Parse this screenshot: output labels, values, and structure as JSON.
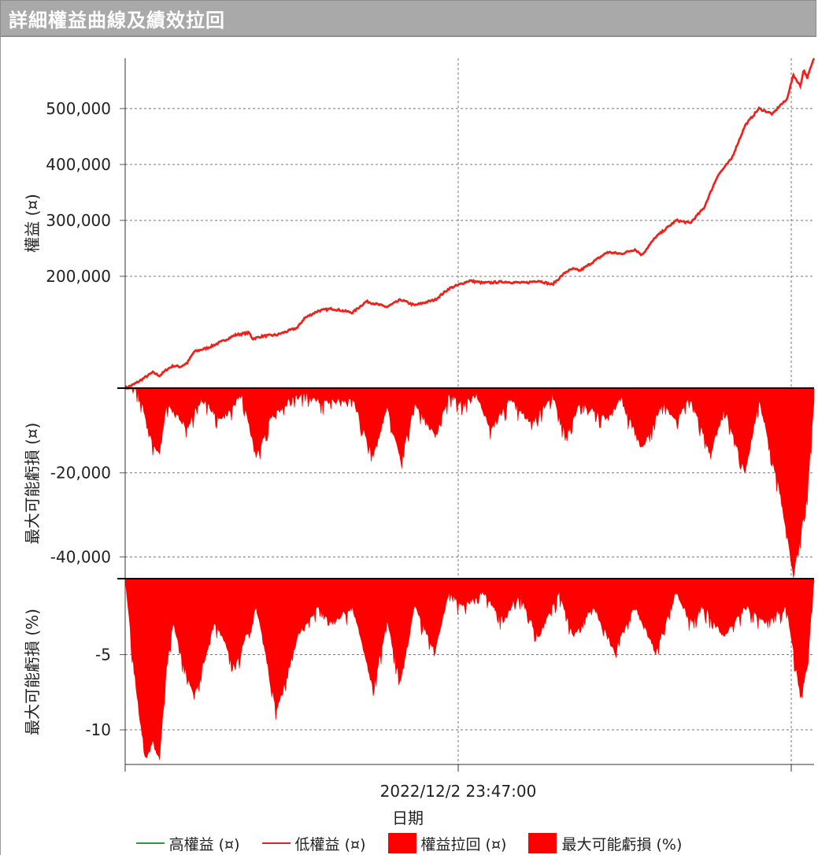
{
  "title": "詳細權益曲線及績效拉回",
  "colors": {
    "high": "#2e9b2e",
    "low": "#ff1a1a",
    "fill": "#ff0000"
  },
  "xlabel": "日期",
  "x_tick_label": "2022/12/2 23:47:00",
  "legend": [
    {
      "label": "高權益 (¤)",
      "kind": "line",
      "color": "#2e9b2e"
    },
    {
      "label": "低權益 (¤)",
      "kind": "line",
      "color": "#e8231a"
    },
    {
      "label": "權益拉回 (¤)",
      "kind": "box",
      "color": "#ff0000"
    },
    {
      "label": "最大可能虧損 (%)",
      "kind": "box",
      "color": "#ff0000"
    }
  ],
  "chart_data": [
    {
      "type": "line",
      "name": "equity",
      "ylabel": "權益 (¤)",
      "ylim": [
        0,
        590000
      ],
      "yticks": [
        200000,
        300000,
        400000,
        500000
      ],
      "ytick_labels": [
        "200,000",
        "300,000",
        "400,000",
        "500,000"
      ],
      "series": [
        {
          "name": "高權益 (¤)",
          "color": "#2e9b2e"
        },
        {
          "name": "低權益 (¤)",
          "color": "#ff1a1a"
        }
      ],
      "x": [
        0.0,
        0.01,
        0.02,
        0.03,
        0.04,
        0.05,
        0.06,
        0.07,
        0.08,
        0.09,
        0.1,
        0.12,
        0.14,
        0.16,
        0.18,
        0.185,
        0.2,
        0.22,
        0.25,
        0.26,
        0.28,
        0.3,
        0.33,
        0.35,
        0.38,
        0.4,
        0.42,
        0.45,
        0.47,
        0.5,
        0.52,
        0.55,
        0.58,
        0.6,
        0.62,
        0.64,
        0.65,
        0.66,
        0.67,
        0.7,
        0.72,
        0.74,
        0.75,
        0.77,
        0.8,
        0.82,
        0.84,
        0.86,
        0.87,
        0.88,
        0.9,
        0.92,
        0.94,
        0.95,
        0.96,
        0.97,
        0.98,
        0.985,
        0.99,
        1.0
      ],
      "values": [
        0,
        5000,
        12000,
        20000,
        28000,
        22000,
        33000,
        40000,
        38000,
        45000,
        65000,
        72000,
        83000,
        95000,
        99000,
        88000,
        93000,
        95000,
        108000,
        125000,
        138000,
        142000,
        135000,
        155000,
        145000,
        158000,
        148000,
        158000,
        178000,
        192000,
        188000,
        190000,
        188000,
        192000,
        185000,
        208000,
        213000,
        210000,
        218000,
        243000,
        240000,
        248000,
        238000,
        270000,
        300000,
        295000,
        322000,
        380000,
        395000,
        410000,
        470000,
        500000,
        490000,
        505000,
        515000,
        560000,
        540000,
        570000,
        555000,
        590000
      ]
    },
    {
      "type": "area",
      "name": "equity_drawdown",
      "ylabel": "最大可能虧損 (¤)",
      "ylim": [
        -45000,
        0
      ],
      "yticks": [
        -20000,
        -40000
      ],
      "ytick_labels": [
        "-20,000",
        "-40,000"
      ],
      "series": [
        {
          "name": "權益拉回 (¤)",
          "color": "#ff0000"
        }
      ],
      "x": [
        0.0,
        0.02,
        0.035,
        0.05,
        0.06,
        0.09,
        0.11,
        0.14,
        0.17,
        0.19,
        0.21,
        0.24,
        0.26,
        0.29,
        0.33,
        0.36,
        0.38,
        0.4,
        0.42,
        0.45,
        0.47,
        0.49,
        0.51,
        0.53,
        0.56,
        0.59,
        0.62,
        0.64,
        0.66,
        0.7,
        0.72,
        0.75,
        0.78,
        0.8,
        0.82,
        0.85,
        0.87,
        0.9,
        0.92,
        0.95,
        0.97,
        0.99,
        1.0
      ],
      "values": [
        0,
        -1000,
        -12000,
        -16000,
        -4000,
        -10000,
        -3000,
        -8000,
        -2000,
        -17000,
        -8000,
        -3000,
        -2000,
        -4000,
        -3000,
        -17000,
        -5000,
        -18000,
        -4000,
        -12000,
        -2000,
        -4000,
        -2000,
        -10000,
        -3000,
        -9000,
        -2000,
        -12000,
        -4000,
        -8000,
        -3000,
        -15000,
        -4000,
        -8000,
        -3000,
        -16000,
        -5000,
        -21000,
        -3000,
        -25000,
        -45000,
        -26000,
        -3000
      ]
    },
    {
      "type": "area",
      "name": "percent_drawdown",
      "ylabel": "最大可能虧損 (%)",
      "ylim": [
        -12.3,
        0
      ],
      "yticks": [
        -5,
        -10
      ],
      "ytick_labels": [
        "-5",
        "-10"
      ],
      "series": [
        {
          "name": "最大可能虧損 (%)",
          "color": "#ff0000"
        }
      ],
      "x": [
        0.0,
        0.01,
        0.02,
        0.03,
        0.04,
        0.05,
        0.06,
        0.07,
        0.08,
        0.1,
        0.13,
        0.16,
        0.19,
        0.22,
        0.25,
        0.28,
        0.3,
        0.33,
        0.36,
        0.38,
        0.4,
        0.42,
        0.45,
        0.47,
        0.49,
        0.52,
        0.55,
        0.57,
        0.6,
        0.63,
        0.65,
        0.68,
        0.71,
        0.74,
        0.77,
        0.8,
        0.82,
        0.84,
        0.87,
        0.9,
        0.93,
        0.96,
        0.98,
        0.99,
        1.0
      ],
      "values": [
        0,
        -5,
        -9,
        -12.2,
        -11,
        -12.1,
        -6,
        -3,
        -5,
        -8,
        -3,
        -6,
        -2,
        -9,
        -4,
        -2,
        -3,
        -2,
        -7.5,
        -3,
        -7,
        -2,
        -5,
        -1,
        -2,
        -1,
        -3,
        -1,
        -4,
        -1,
        -4,
        -2,
        -5,
        -2,
        -5,
        -1,
        -3,
        -2,
        -4,
        -2,
        -3,
        -2,
        -8,
        -6,
        0
      ]
    }
  ]
}
